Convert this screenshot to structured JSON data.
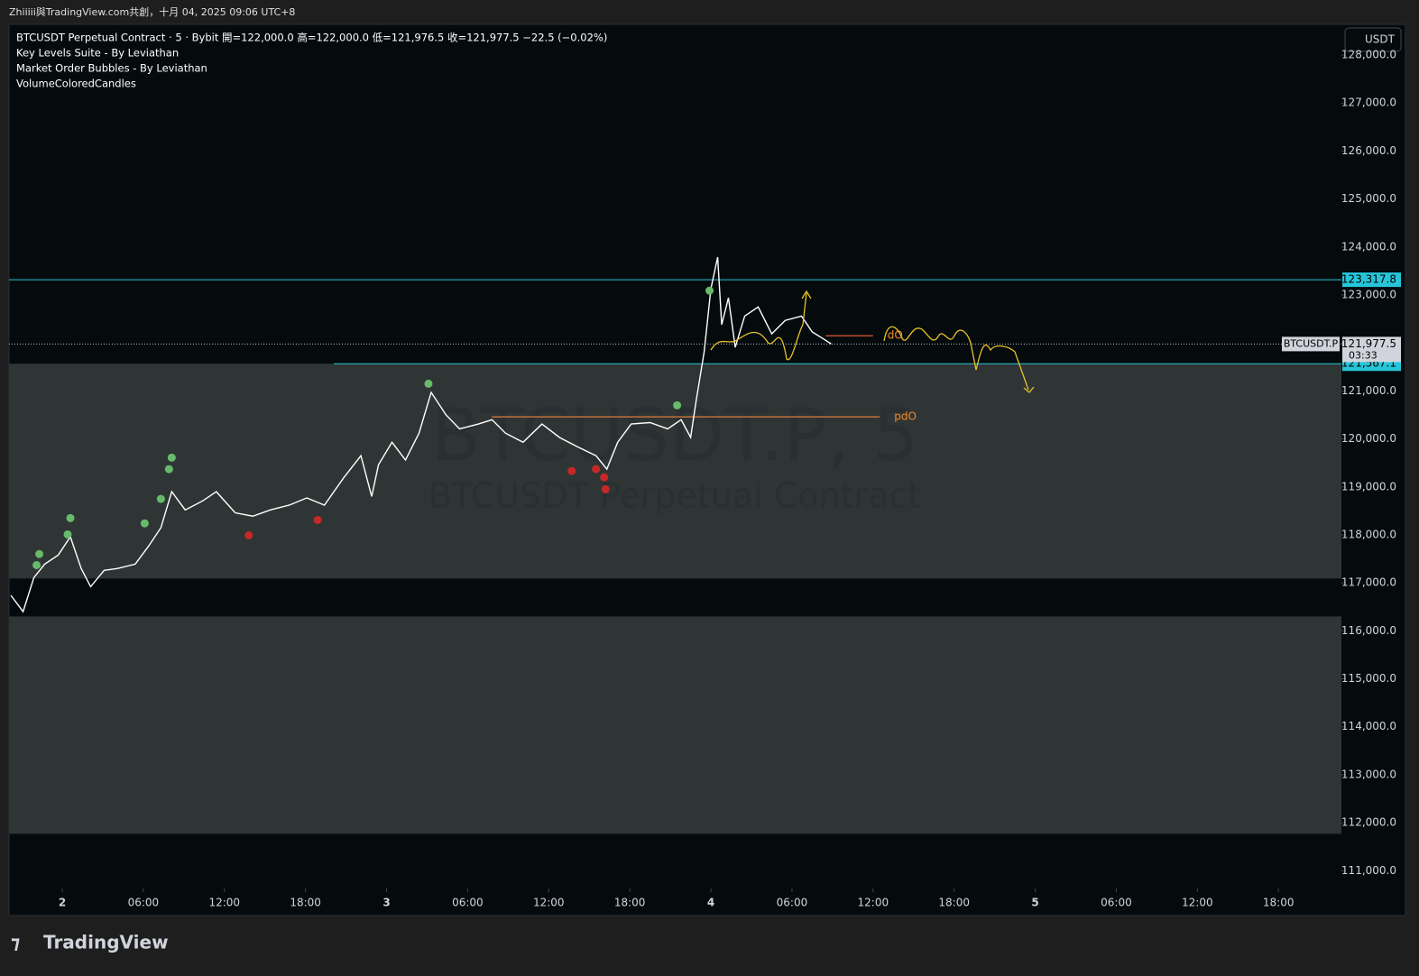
{
  "header": {
    "caption": "Zhiiiii與TradingView.com共創，十月 04, 2025 09:06 UTC+8"
  },
  "footer": {
    "brand": "TradingView"
  },
  "chart_data": {
    "type": "line",
    "legend": [
      "BTCUSDT Perpetual Contract · 5 · Bybit  開=122,000.0 高=122,000.0 低=121,976.5 收=121,977.5  −22.5 (−0.02%)",
      "Key Levels Suite - By Leviathan",
      "Market Order Bubbles - By Leviathan",
      "VolumeColoredCandles"
    ],
    "watermark": [
      "BTCUSDT.P, 5",
      "BTCUSDT Perpetual Contract"
    ],
    "currency": "USDT",
    "xlim": [
      -3.94,
      94.66
    ],
    "xticks": [
      {
        "value": 0,
        "label": "2"
      },
      {
        "value": 6,
        "label": "06:00"
      },
      {
        "value": 12,
        "label": "12:00"
      },
      {
        "value": 18,
        "label": "18:00"
      },
      {
        "value": 24,
        "label": "3"
      },
      {
        "value": 30,
        "label": "06:00"
      },
      {
        "value": 36,
        "label": "12:00"
      },
      {
        "value": 42,
        "label": "18:00"
      },
      {
        "value": 48,
        "label": "4"
      },
      {
        "value": 54,
        "label": "06:00"
      },
      {
        "value": 60,
        "label": "12:00"
      },
      {
        "value": 66,
        "label": "18:00"
      },
      {
        "value": 72,
        "label": "5"
      },
      {
        "value": 78,
        "label": "06:00"
      },
      {
        "value": 84,
        "label": "12:00"
      },
      {
        "value": 90,
        "label": "18:00"
      }
    ],
    "ylim": [
      110630,
      128640
    ],
    "yticks": [
      {
        "value": 111000,
        "label": "111,000.0"
      },
      {
        "value": 112000,
        "label": "112,000.0"
      },
      {
        "value": 113000,
        "label": "113,000.0"
      },
      {
        "value": 114000,
        "label": "114,000.0"
      },
      {
        "value": 115000,
        "label": "115,000.0"
      },
      {
        "value": 116000,
        "label": "116,000.0"
      },
      {
        "value": 117000,
        "label": "117,000.0"
      },
      {
        "value": 118000,
        "label": "118,000.0"
      },
      {
        "value": 119000,
        "label": "119,000.0"
      },
      {
        "value": 120000,
        "label": "120,000.0"
      },
      {
        "value": 121000,
        "label": "121,000.0"
      },
      {
        "value": 122000,
        "label": "122,000.0"
      },
      {
        "value": 123000,
        "label": "123,000.0"
      },
      {
        "value": 124000,
        "label": "124,000.0"
      },
      {
        "value": 125000,
        "label": "125,000.0"
      },
      {
        "value": 126000,
        "label": "126,000.0"
      },
      {
        "value": 127000,
        "label": "127,000.0"
      },
      {
        "value": 128000,
        "label": "128,000.0"
      }
    ],
    "zones": [
      {
        "top": 121567.1,
        "bottom": 117090,
        "color": "#2f3534"
      },
      {
        "top": 116300,
        "bottom": 111770,
        "color": "#2f3534"
      }
    ],
    "series": [
      {
        "color": "#ffffff",
        "x": [
          -3.8,
          -2.9,
          -2.1,
          -1.3,
          -0.3,
          0.6,
          1.4,
          2.1,
          3.1,
          4.1,
          5.4,
          6.4,
          7.3,
          8.1,
          9.1,
          10.4,
          11.4,
          12.8,
          14.1,
          15.4,
          16.8,
          18.1,
          19.4,
          20.8,
          22.1,
          22.9,
          23.4,
          24.4,
          25.4,
          26.4,
          27.3,
          28.4,
          29.4,
          30.8,
          31.8,
          32.8,
          34.1,
          35.5,
          36.8,
          38.1,
          39.5,
          40.3,
          41.1,
          42.1,
          43.5,
          44.8,
          45.8,
          46.5,
          46.9,
          47.5,
          48.0,
          48.5,
          48.8,
          49.3,
          49.8,
          50.5,
          51.5,
          52.5,
          53.5,
          54.7,
          55.5,
          56.3,
          56.9
        ],
        "values": [
          116740,
          116400,
          117110,
          117390,
          117580,
          117960,
          117300,
          116920,
          117260,
          117300,
          117390,
          117770,
          118150,
          118900,
          118520,
          118710,
          118900,
          118460,
          118390,
          118520,
          118620,
          118770,
          118620,
          119180,
          119650,
          118800,
          119460,
          119930,
          119560,
          120120,
          120970,
          120500,
          120210,
          120310,
          120400,
          120120,
          119930,
          120310,
          120030,
          119840,
          119650,
          119370,
          119930,
          120310,
          120340,
          120210,
          120400,
          120030,
          120780,
          121810,
          123130,
          123790,
          122380,
          122940,
          121910,
          122560,
          122750,
          122190,
          122470,
          122560,
          122230,
          122090,
          121980
        ]
      }
    ],
    "bubbles": [
      {
        "color": "#66bb6a",
        "x": [
          -1.9,
          -1.7,
          0.4,
          0.6,
          6.1,
          7.3,
          7.9,
          8.1,
          27.1,
          45.5,
          47.9
        ],
        "values": [
          117370,
          117600,
          118010,
          118350,
          118240,
          118750,
          119370,
          119610,
          121150,
          120700,
          123090
        ]
      },
      {
        "color": "#c62828",
        "x": [
          13.8,
          18.9,
          37.7,
          39.5,
          40.2,
          40.1
        ],
        "values": [
          117990,
          118310,
          119330,
          119370,
          118950,
          119200
        ]
      }
    ],
    "levels": [
      {
        "value": 123317.8,
        "label": "123,317.8",
        "color": "#26c6da",
        "from": -3.94
      },
      {
        "value": 121567.1,
        "label": "121,567.1",
        "color": "#26c6da",
        "from": 20.1
      }
    ],
    "opens": [
      {
        "value": 120460,
        "name": "pdO",
        "from": 31.8,
        "to": 60.5,
        "color": "#e07b39"
      },
      {
        "value": 122150,
        "name": "dO",
        "from": 56.5,
        "to": 60.0,
        "color": "#e05a3a"
      }
    ],
    "last": {
      "value": 121977.5,
      "label": "121,977.5",
      "countdown": "03:33",
      "symbol": "BTCUSDT.P"
    }
  }
}
